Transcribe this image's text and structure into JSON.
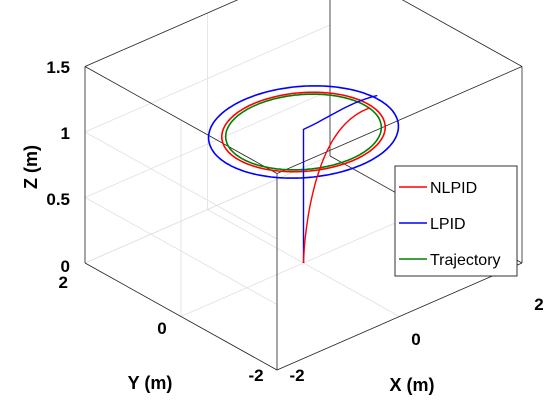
{
  "chart_data": {
    "type": "line",
    "projection": "3d",
    "xlabel": "X (m)",
    "ylabel": "Y (m)",
    "zlabel": "Z (m)",
    "xlim": [
      -2,
      2
    ],
    "ylim": [
      -2,
      2
    ],
    "zlim": [
      0,
      1.5
    ],
    "x_ticks": [
      "-2",
      "0",
      "2"
    ],
    "y_ticks": [
      "-2",
      "0",
      "2"
    ],
    "z_ticks": [
      "0",
      "0.5",
      "1",
      "1.5"
    ],
    "grid": true,
    "box": true,
    "legend_position": "right",
    "legend": [
      "NLPID",
      "LPID",
      "Trajectory"
    ],
    "series": [
      {
        "name": "NLPID",
        "color": "#ff0000",
        "radius": 1.05,
        "height": 1.0,
        "start": [
          0.0,
          0.0,
          0.0
        ]
      },
      {
        "name": "LPID",
        "color": "#0000ff",
        "radius": 1.22,
        "height": 1.0,
        "start": [
          0.0,
          0.0,
          0.0
        ]
      },
      {
        "name": "Trajectory",
        "color": "#008000",
        "radius": 1.0,
        "height": 1.0
      }
    ]
  }
}
